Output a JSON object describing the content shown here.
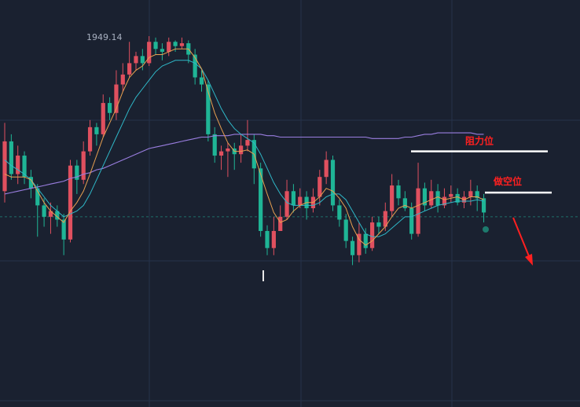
{
  "chart_data": {
    "type": "candlestick",
    "title": "",
    "high_label": "1949.14",
    "colors": {
      "up": "#e0505f",
      "down": "#1fb596",
      "ma_fast": "#e8a050",
      "ma_mid": "#2fb8c8",
      "ma_slow": "#9a7ee0",
      "grid": "#26334a",
      "dashed_level": "#1f6f6a",
      "annotation": "#ff2020",
      "level_line": "#ffffff"
    },
    "ylim": [
      1700,
      1960
    ],
    "dashed_level": 1822,
    "candles": [
      [
        1840,
        1875,
        1888,
        1832
      ],
      [
        1875,
        1852,
        1880,
        1848
      ],
      [
        1852,
        1865,
        1872,
        1845
      ],
      [
        1865,
        1850,
        1868,
        1845
      ],
      [
        1850,
        1842,
        1855,
        1835
      ],
      [
        1842,
        1830,
        1845,
        1808
      ],
      [
        1830,
        1822,
        1835,
        1815
      ],
      [
        1822,
        1826,
        1832,
        1810
      ],
      [
        1826,
        1820,
        1830,
        1815
      ],
      [
        1820,
        1806,
        1824,
        1795
      ],
      [
        1806,
        1858,
        1862,
        1804
      ],
      [
        1858,
        1848,
        1862,
        1838
      ],
      [
        1848,
        1868,
        1875,
        1845
      ],
      [
        1868,
        1885,
        1890,
        1865
      ],
      [
        1885,
        1880,
        1888,
        1872
      ],
      [
        1880,
        1902,
        1908,
        1878
      ],
      [
        1902,
        1895,
        1906,
        1890
      ],
      [
        1895,
        1915,
        1925,
        1890
      ],
      [
        1915,
        1922,
        1930,
        1910
      ],
      [
        1922,
        1930,
        1945,
        1920
      ],
      [
        1930,
        1935,
        1938,
        1925
      ],
      [
        1935,
        1930,
        1940,
        1925
      ],
      [
        1930,
        1945,
        1949,
        1928
      ],
      [
        1945,
        1940,
        1948,
        1936
      ],
      [
        1940,
        1938,
        1944,
        1932
      ],
      [
        1938,
        1945,
        1948,
        1935
      ],
      [
        1945,
        1942,
        1946,
        1938
      ],
      [
        1942,
        1944,
        1948,
        1940
      ],
      [
        1944,
        1936,
        1946,
        1930
      ],
      [
        1936,
        1920,
        1940,
        1915
      ],
      [
        1920,
        1915,
        1925,
        1910
      ],
      [
        1915,
        1880,
        1918,
        1875
      ],
      [
        1880,
        1865,
        1885,
        1860
      ],
      [
        1865,
        1868,
        1872,
        1855
      ],
      [
        1868,
        1870,
        1874,
        1850
      ],
      [
        1870,
        1866,
        1874,
        1855
      ],
      [
        1866,
        1872,
        1880,
        1860
      ],
      [
        1872,
        1876,
        1890,
        1868
      ],
      [
        1876,
        1856,
        1880,
        1845
      ],
      [
        1856,
        1812,
        1860,
        1808
      ],
      [
        1812,
        1800,
        1816,
        1795
      ],
      [
        1800,
        1812,
        1822,
        1795
      ],
      [
        1812,
        1822,
        1830,
        1818
      ],
      [
        1822,
        1840,
        1848,
        1820
      ],
      [
        1840,
        1830,
        1845,
        1825
      ],
      [
        1830,
        1836,
        1842,
        1828
      ],
      [
        1836,
        1828,
        1840,
        1820
      ],
      [
        1828,
        1836,
        1842,
        1825
      ],
      [
        1836,
        1850,
        1855,
        1830
      ],
      [
        1850,
        1862,
        1868,
        1845
      ],
      [
        1862,
        1830,
        1865,
        1826
      ],
      [
        1830,
        1820,
        1834,
        1815
      ],
      [
        1820,
        1805,
        1824,
        1800
      ],
      [
        1805,
        1795,
        1808,
        1788
      ],
      [
        1795,
        1810,
        1818,
        1790
      ],
      [
        1810,
        1800,
        1814,
        1796
      ],
      [
        1800,
        1818,
        1822,
        1798
      ],
      [
        1818,
        1815,
        1822,
        1810
      ],
      [
        1815,
        1826,
        1832,
        1812
      ],
      [
        1826,
        1844,
        1852,
        1822
      ],
      [
        1844,
        1835,
        1848,
        1830
      ],
      [
        1835,
        1828,
        1840,
        1826
      ],
      [
        1828,
        1810,
        1832,
        1806
      ],
      [
        1810,
        1842,
        1860,
        1808
      ],
      [
        1842,
        1830,
        1846,
        1826
      ],
      [
        1830,
        1840,
        1848,
        1828
      ],
      [
        1840,
        1830,
        1845,
        1825
      ],
      [
        1830,
        1836,
        1842,
        1828
      ],
      [
        1836,
        1838,
        1844,
        1832
      ],
      [
        1838,
        1832,
        1842,
        1830
      ],
      [
        1832,
        1836,
        1840,
        1828
      ],
      [
        1836,
        1840,
        1848,
        1830
      ],
      [
        1840,
        1835,
        1844,
        1826
      ],
      [
        1835,
        1825,
        1838,
        1818
      ]
    ],
    "ma_fast": [
      1852,
      1850,
      1850,
      1850,
      1848,
      1840,
      1832,
      1826,
      1822,
      1818,
      1826,
      1832,
      1840,
      1852,
      1865,
      1878,
      1888,
      1898,
      1910,
      1920,
      1925,
      1928,
      1934,
      1936,
      1936,
      1938,
      1940,
      1940,
      1940,
      1934,
      1926,
      1910,
      1895,
      1884,
      1874,
      1868,
      1868,
      1869,
      1866,
      1852,
      1838,
      1825,
      1818,
      1820,
      1826,
      1830,
      1832,
      1832,
      1836,
      1842,
      1840,
      1835,
      1828,
      1815,
      1806,
      1802,
      1805,
      1810,
      1815,
      1822,
      1828,
      1830,
      1828,
      1830,
      1832,
      1834,
      1836,
      1834,
      1835,
      1836,
      1834,
      1836,
      1836,
      1834
    ],
    "ma_mid": [
      1862,
      1858,
      1855,
      1852,
      1848,
      1842,
      1836,
      1830,
      1826,
      1822,
      1824,
      1826,
      1830,
      1838,
      1848,
      1858,
      1868,
      1878,
      1888,
      1898,
      1906,
      1912,
      1918,
      1924,
      1928,
      1930,
      1932,
      1932,
      1932,
      1930,
      1926,
      1918,
      1908,
      1898,
      1890,
      1884,
      1880,
      1877,
      1874,
      1866,
      1856,
      1846,
      1838,
      1832,
      1830,
      1830,
      1830,
      1830,
      1832,
      1836,
      1838,
      1838,
      1834,
      1826,
      1818,
      1810,
      1808,
      1808,
      1810,
      1814,
      1818,
      1822,
      1822,
      1824,
      1826,
      1828,
      1830,
      1831,
      1832,
      1833,
      1833,
      1833,
      1834,
      1833
    ],
    "ma_slow": [
      1838,
      1839,
      1840,
      1841,
      1842,
      1843,
      1844,
      1845,
      1846,
      1847,
      1849,
      1850,
      1852,
      1853,
      1855,
      1856,
      1858,
      1860,
      1862,
      1864,
      1866,
      1868,
      1870,
      1871,
      1872,
      1873,
      1874,
      1875,
      1876,
      1877,
      1878,
      1878,
      1879,
      1879,
      1879,
      1880,
      1880,
      1880,
      1880,
      1880,
      1879,
      1879,
      1878,
      1878,
      1878,
      1878,
      1878,
      1878,
      1878,
      1878,
      1878,
      1878,
      1878,
      1878,
      1878,
      1878,
      1877,
      1877,
      1877,
      1877,
      1877,
      1878,
      1878,
      1879,
      1880,
      1880,
      1881,
      1881,
      1881,
      1881,
      1881,
      1881,
      1880,
      1880
    ],
    "annotations": {
      "resistance_label": "阻力位",
      "short_label": "做空位",
      "resistance_price": 1868,
      "short_price": 1839
    }
  }
}
